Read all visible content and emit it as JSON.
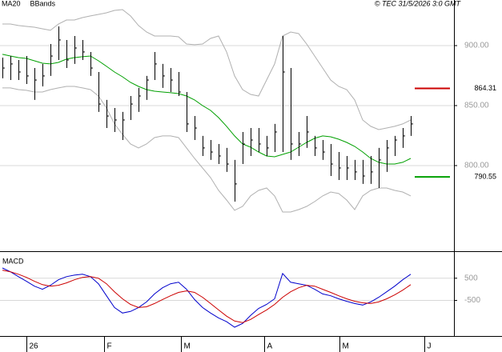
{
  "chart_data": [
    {
      "type": "stock",
      "source": "© TEC 31/5/2026 3:0 GMT",
      "x": [
        0,
        1,
        2,
        3,
        4,
        5,
        6,
        7,
        8,
        9,
        10,
        11,
        12,
        13,
        14,
        15,
        16,
        17,
        18,
        19,
        20,
        21,
        22,
        23,
        24,
        25,
        26,
        27,
        28,
        29,
        30,
        31,
        32,
        33,
        34,
        35,
        36,
        37,
        38,
        39,
        40,
        41,
        42,
        43,
        44,
        45,
        46,
        47,
        48,
        49,
        50,
        51
      ],
      "high": [
        890,
        891.3,
        888,
        891.3,
        881.3,
        884.7,
        901.3,
        916,
        904.7,
        908,
        904.7,
        894.7,
        878,
        854.7,
        848,
        844.7,
        858,
        864.7,
        874.7,
        894.7,
        884.7,
        881.3,
        878,
        861.3,
        841.3,
        824.7,
        821.3,
        818,
        814.7,
        804.7,
        828,
        831.3,
        831.3,
        824.7,
        834.7,
        908,
        881.3,
        828,
        841.3,
        824.7,
        821.3,
        818,
        811.3,
        808,
        804.7,
        804.7,
        808,
        814.7,
        821.3,
        824.7,
        831.3,
        841.3
      ],
      "low": [
        872.7,
        871.3,
        871.3,
        868,
        854.7,
        866,
        874.7,
        888,
        881.3,
        884.7,
        888,
        874.7,
        844.7,
        831.3,
        828,
        821.3,
        838,
        844.7,
        854.7,
        871.3,
        864.7,
        861.3,
        858,
        828,
        821.3,
        808,
        804.7,
        801.3,
        794.7,
        770,
        801.3,
        808,
        811.3,
        808,
        811.3,
        811.3,
        804.7,
        808,
        814.7,
        808,
        804.7,
        791.3,
        788,
        788,
        788,
        784.7,
        784.7,
        781.3,
        794.7,
        808,
        814.7,
        824.7
      ],
      "close": [
        881.3,
        884.7,
        878,
        874.7,
        871.3,
        874.7,
        891.3,
        904.7,
        888,
        898,
        894.7,
        881.3,
        851.3,
        841.3,
        838,
        838,
        851.3,
        858,
        871.3,
        884.7,
        874.7,
        871.3,
        861.3,
        834.7,
        831.3,
        814.7,
        811.3,
        808,
        801.3,
        784.7,
        818,
        821.3,
        818,
        814.7,
        828,
        878,
        818,
        818,
        828,
        814.7,
        811.3,
        801.3,
        798,
        798,
        794.7,
        791.3,
        794.7,
        804.7,
        814.7,
        821.3,
        824.7,
        834.7
      ],
      "bar_color": "#000000",
      "series": [
        {
          "name": "MA20",
          "color": "#00a000",
          "values": [
            892.7,
            891.3,
            890,
            889.3,
            887.3,
            885.3,
            884.7,
            886,
            888.7,
            890,
            890.7,
            891.3,
            887.3,
            882.7,
            878,
            874,
            869.3,
            866,
            863.3,
            862,
            861.3,
            860.7,
            860,
            858,
            854.7,
            850,
            846,
            840,
            832.7,
            824.7,
            818,
            815.3,
            811.3,
            808,
            807.3,
            809.3,
            811.3,
            815.3,
            819.3,
            822.7,
            824.7,
            824,
            822,
            819.3,
            816,
            811.3,
            806,
            802.7,
            801.3,
            801.3,
            802.7,
            806
          ]
        },
        {
          "name": "BBands",
          "color": "#b0b0b0",
          "upper": [
            918,
            918,
            916.7,
            916,
            915.3,
            914,
            912.7,
            918,
            921.3,
            921.3,
            923.3,
            924.7,
            926,
            927.3,
            929.3,
            930,
            924.7,
            916.7,
            911.3,
            908,
            908,
            908,
            907.3,
            901.3,
            900.7,
            901.3,
            906,
            908,
            894.7,
            874.7,
            863.3,
            859.3,
            858,
            871.3,
            884.7,
            908,
            911.3,
            910,
            901.3,
            891.3,
            881.3,
            871.3,
            866,
            863.3,
            854.7,
            838,
            832.7,
            830,
            831.3,
            832.7,
            834.7,
            838
          ],
          "lower": [
            864.7,
            864.7,
            863.3,
            862.7,
            861.3,
            861.3,
            863.3,
            864.7,
            866,
            866,
            864.7,
            863.3,
            858,
            848,
            834.7,
            826,
            818,
            814.7,
            818,
            823.3,
            824.7,
            824.7,
            823.3,
            814.7,
            806,
            798,
            790,
            779.3,
            771.3,
            762.7,
            766,
            774.7,
            779.3,
            781.3,
            774.7,
            761.3,
            761.3,
            763.3,
            766,
            770,
            774.7,
            778,
            776.7,
            771.3,
            763.3,
            774.7,
            779.3,
            781.3,
            781.3,
            779.3,
            778,
            774.7
          ]
        }
      ],
      "markers": [
        {
          "value": 864.31,
          "color": "#cc0000"
        },
        {
          "value": 790.55,
          "color": "#00a000"
        }
      ],
      "ylim": [
        729.3,
        938
      ],
      "yticks": [
        {
          "value": 900,
          "label": "900.00"
        },
        {
          "value": 850,
          "label": "850.00"
        },
        {
          "value": 800,
          "label": "800.00"
        }
      ],
      "xlim": [
        -0.3,
        56.4
      ],
      "grid": true
    },
    {
      "type": "line",
      "title": "MACD",
      "series": [
        {
          "color": "#0000cc",
          "values": [
            960,
            790,
            570,
            360,
            140,
            0,
            180,
            430,
            570,
            640,
            680,
            570,
            250,
            -290,
            -820,
            -1070,
            -1000,
            -820,
            -570,
            -210,
            70,
            250,
            320,
            0,
            -460,
            -820,
            -1070,
            -1290,
            -1460,
            -1710,
            -1540,
            -1180,
            -860,
            -680,
            -430,
            710,
            320,
            250,
            180,
            0,
            -210,
            -290,
            -430,
            -540,
            -640,
            -710,
            -570,
            -360,
            -110,
            140,
            430,
            680
          ]
        },
        {
          "color": "#cc0000",
          "values": [
            860,
            790,
            680,
            540,
            360,
            210,
            140,
            180,
            290,
            430,
            540,
            570,
            500,
            250,
            -110,
            -430,
            -680,
            -820,
            -790,
            -640,
            -460,
            -290,
            -140,
            -70,
            -140,
            -360,
            -640,
            -930,
            -1210,
            -1430,
            -1500,
            -1360,
            -1140,
            -930,
            -680,
            -360,
            -110,
            70,
            180,
            140,
            0,
            -140,
            -290,
            -430,
            -540,
            -610,
            -640,
            -570,
            -430,
            -250,
            -40,
            210
          ]
        }
      ],
      "ylim": [
        -2070,
        1610
      ],
      "yticks": [
        500,
        -500
      ],
      "xlim": [
        -0.3,
        56.4
      ],
      "xticks": [
        {
          "value": 3,
          "label": "26"
        },
        {
          "value": 12.7,
          "label": "F"
        },
        {
          "value": 22.3,
          "label": "M"
        },
        {
          "value": 32.7,
          "label": "A"
        },
        {
          "value": 42.1,
          "label": "M"
        },
        {
          "value": 52.7,
          "label": "J"
        }
      ],
      "grid": true
    }
  ]
}
